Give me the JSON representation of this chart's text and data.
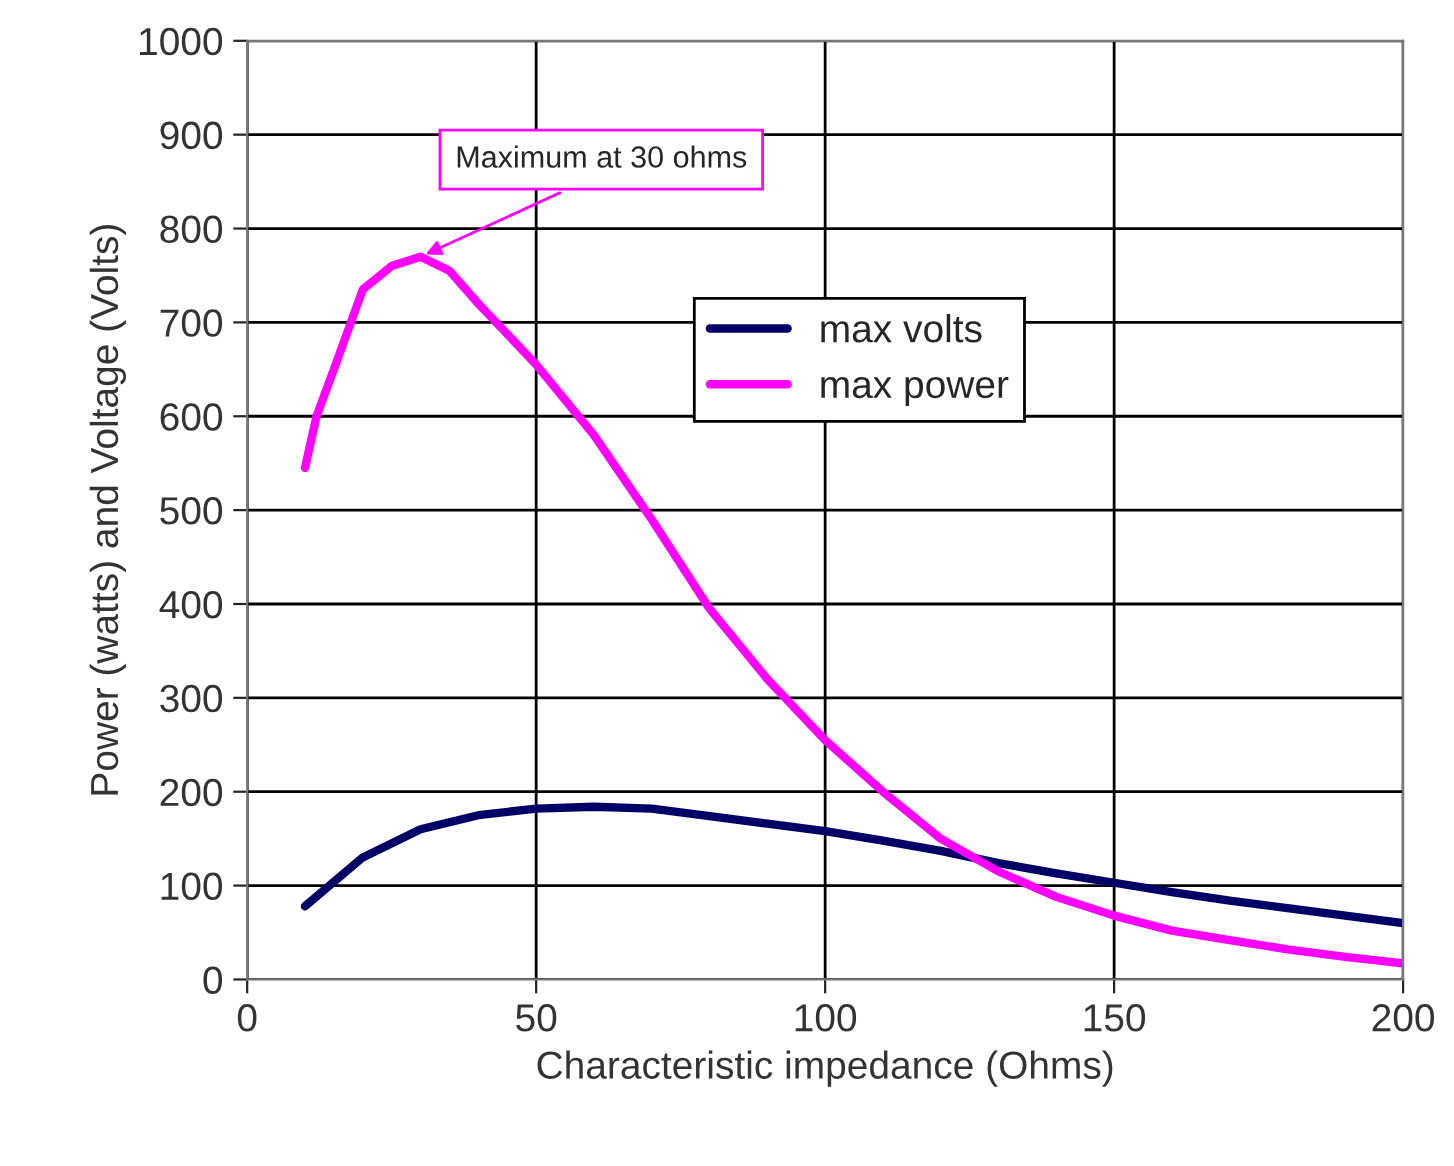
{
  "chart_data": {
    "type": "line",
    "xlabel": "Characteristic impedance (Ohms)",
    "ylabel": "Power (watts) and Voltage (Volts)",
    "xlim": [
      0,
      200
    ],
    "xticks": [
      0,
      50,
      100,
      150,
      200
    ],
    "ylim": [
      0,
      1000
    ],
    "yticks": [
      0,
      100,
      200,
      300,
      400,
      500,
      600,
      700,
      800,
      900,
      1000
    ],
    "grid": true,
    "legend": "right",
    "marker": "none",
    "line_style": "solid",
    "series": [
      {
        "name": "max volts",
        "color": "#000066",
        "x": [
          10,
          20,
          30,
          40,
          50,
          60,
          70,
          80,
          90,
          100,
          110,
          120,
          130,
          140,
          150,
          160,
          170,
          180,
          190,
          200
        ],
        "values": [
          78,
          130,
          160,
          175,
          182,
          184,
          182,
          174,
          166,
          158,
          148,
          137,
          124,
          113,
          103,
          93,
          84,
          76,
          68,
          60
        ]
      },
      {
        "name": "max power",
        "color": "#ff00ff",
        "x": [
          10,
          12,
          15,
          20,
          25,
          30,
          35,
          40,
          50,
          60,
          70,
          80,
          90,
          100,
          110,
          120,
          130,
          140,
          150,
          160,
          170,
          180,
          190,
          200
        ],
        "values": [
          545,
          600,
          650,
          735,
          760,
          770,
          755,
          720,
          655,
          580,
          490,
          395,
          320,
          255,
          200,
          150,
          115,
          88,
          68,
          52,
          42,
          32,
          24,
          17
        ]
      }
    ],
    "annotations": [
      {
        "text": "Maximum at 30 ohms",
        "x": 30,
        "y": 770
      }
    ]
  }
}
